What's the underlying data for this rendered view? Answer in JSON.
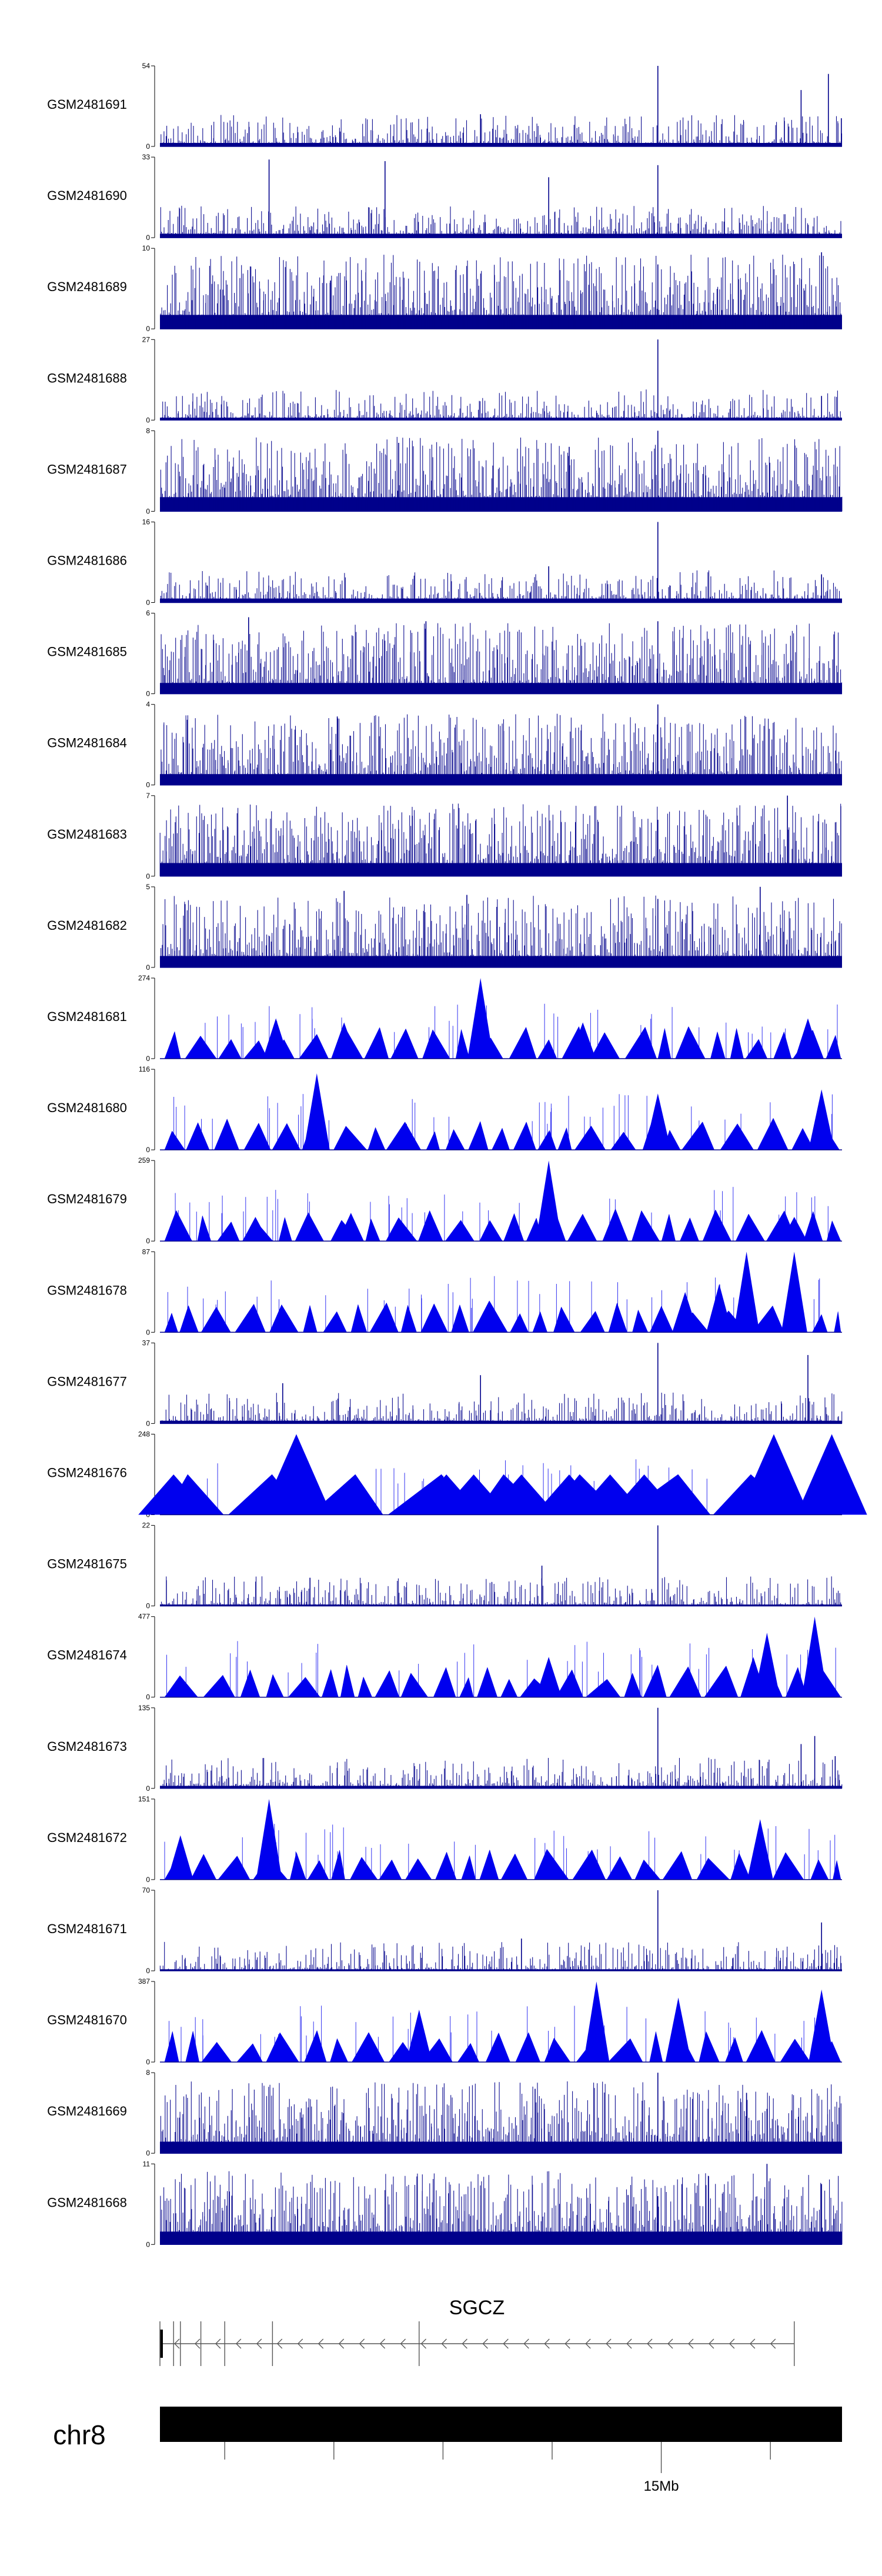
{
  "chart_data": {
    "type": "coverage-tracks",
    "title": "",
    "colors": {
      "signal": "#00008B",
      "signal_filled": "#0000EE",
      "axis": "#000000",
      "gene": "#555555",
      "ideogram": "#000000"
    },
    "tracks": [
      {
        "name": "GSM2481691",
        "ymax": 54,
        "ymin": 0,
        "style": "bars",
        "peaks": [
          [
            0.47,
            0.4
          ],
          [
            0.73,
            1.0
          ],
          [
            0.94,
            0.7
          ],
          [
            0.98,
            0.9
          ],
          [
            0.999,
            0.35
          ]
        ]
      },
      {
        "name": "GSM2481690",
        "ymax": 33,
        "ymin": 0,
        "style": "bars",
        "peaks": [
          [
            0.16,
            0.97
          ],
          [
            0.33,
            0.95
          ],
          [
            0.57,
            0.75
          ],
          [
            0.73,
            0.9
          ]
        ]
      },
      {
        "name": "GSM2481689",
        "ymax": 10,
        "ymin": 0,
        "style": "bars",
        "peaks": [
          [
            0.25,
            0.6
          ],
          [
            0.73,
            0.8
          ],
          [
            0.97,
            0.95
          ]
        ]
      },
      {
        "name": "GSM2481688",
        "ymax": 27,
        "ymin": 0,
        "style": "bars",
        "peaks": [
          [
            0.73,
            1.0
          ],
          [
            0.97,
            0.3
          ]
        ]
      },
      {
        "name": "GSM2481687",
        "ymax": 8,
        "ymin": 0,
        "style": "bars",
        "peaks": [
          [
            0.73,
            1.0
          ],
          [
            0.35,
            0.85
          ],
          [
            0.6,
            0.8
          ]
        ]
      },
      {
        "name": "GSM2481686",
        "ymax": 16,
        "ymin": 0,
        "style": "bars",
        "peaks": [
          [
            0.73,
            1.0
          ],
          [
            0.57,
            0.45
          ],
          [
            0.97,
            0.35
          ]
        ]
      },
      {
        "name": "GSM2481685",
        "ymax": 6,
        "ymin": 0,
        "style": "bars",
        "peaks": [
          [
            0.13,
            0.95
          ],
          [
            0.39,
            0.9
          ],
          [
            0.73,
            0.9
          ]
        ]
      },
      {
        "name": "GSM2481684",
        "ymax": 4,
        "ymin": 0,
        "style": "bars",
        "peaks": [
          [
            0.26,
            0.85
          ],
          [
            0.73,
            1.0
          ]
        ]
      },
      {
        "name": "GSM2481683",
        "ymax": 7,
        "ymin": 0,
        "style": "bars",
        "peaks": [
          [
            0.37,
            0.75
          ],
          [
            0.73,
            0.7
          ],
          [
            0.92,
            1.0
          ]
        ]
      },
      {
        "name": "GSM2481682",
        "ymax": 5,
        "ymin": 0,
        "style": "bars",
        "peaks": [
          [
            0.27,
            0.95
          ],
          [
            0.45,
            0.9
          ],
          [
            0.73,
            0.85
          ],
          [
            0.88,
            1.0
          ]
        ]
      },
      {
        "name": "GSM2481681",
        "ymax": 274,
        "ymin": 0,
        "style": "triangles",
        "peaks": [
          [
            0.17,
            0.5
          ],
          [
            0.27,
            0.45
          ],
          [
            0.47,
            1.0
          ],
          [
            0.62,
            0.45
          ],
          [
            0.95,
            0.5
          ]
        ]
      },
      {
        "name": "GSM2481680",
        "ymax": 116,
        "ymin": 0,
        "style": "triangles",
        "peaks": [
          [
            0.23,
            0.95
          ],
          [
            0.73,
            0.7
          ],
          [
            0.97,
            0.75
          ]
        ]
      },
      {
        "name": "GSM2481679",
        "ymax": 259,
        "ymin": 0,
        "style": "triangles",
        "peaks": [
          [
            0.14,
            0.3
          ],
          [
            0.28,
            0.35
          ],
          [
            0.57,
            1.0
          ],
          [
            0.93,
            0.3
          ]
        ]
      },
      {
        "name": "GSM2481678",
        "ymax": 87,
        "ymin": 0,
        "style": "triangles",
        "peaks": [
          [
            0.86,
            1.0
          ],
          [
            0.93,
            1.0
          ],
          [
            0.77,
            0.5
          ],
          [
            0.82,
            0.6
          ]
        ]
      },
      {
        "name": "GSM2481677",
        "ymax": 37,
        "ymin": 0,
        "style": "bars",
        "peaks": [
          [
            0.73,
            1.0
          ],
          [
            0.47,
            0.6
          ],
          [
            0.95,
            0.85
          ],
          [
            0.18,
            0.5
          ]
        ]
      },
      {
        "name": "GSM2481676",
        "ymax": 248,
        "ymin": 0,
        "style": "big-triangles",
        "peaks": [
          [
            0.02,
            0.5
          ],
          [
            0.2,
            1.0
          ],
          [
            0.42,
            0.5
          ],
          [
            0.46,
            0.5
          ],
          [
            0.53,
            0.5
          ],
          [
            0.6,
            0.5
          ],
          [
            0.66,
            0.5
          ],
          [
            0.71,
            0.5
          ],
          [
            0.9,
            1.0
          ],
          [
            0.985,
            1.0
          ]
        ]
      },
      {
        "name": "GSM2481675",
        "ymax": 22,
        "ymin": 0,
        "style": "bars",
        "peaks": [
          [
            0.73,
            1.0
          ],
          [
            0.22,
            0.35
          ],
          [
            0.56,
            0.5
          ]
        ]
      },
      {
        "name": "GSM2481674",
        "ymax": 477,
        "ymin": 0,
        "style": "triangles",
        "peaks": [
          [
            0.57,
            0.5
          ],
          [
            0.87,
            0.5
          ],
          [
            0.89,
            0.8
          ],
          [
            0.96,
            1.0
          ]
        ]
      },
      {
        "name": "GSM2481673",
        "ymax": 135,
        "ymin": 0,
        "style": "bars",
        "peaks": [
          [
            0.73,
            1.0
          ],
          [
            0.94,
            0.55
          ],
          [
            0.96,
            0.65
          ],
          [
            0.99,
            0.4
          ]
        ]
      },
      {
        "name": "GSM2481672",
        "ymax": 151,
        "ymin": 0,
        "style": "triangles",
        "peaks": [
          [
            0.16,
            1.0
          ],
          [
            0.88,
            0.75
          ],
          [
            0.03,
            0.55
          ]
        ]
      },
      {
        "name": "GSM2481671",
        "ymax": 70,
        "ymin": 0,
        "style": "bars",
        "peaks": [
          [
            0.73,
            1.0
          ],
          [
            0.97,
            0.6
          ],
          [
            0.53,
            0.4
          ]
        ]
      },
      {
        "name": "GSM2481670",
        "ymax": 387,
        "ymin": 0,
        "style": "triangles",
        "peaks": [
          [
            0.64,
            1.0
          ],
          [
            0.38,
            0.65
          ],
          [
            0.76,
            0.8
          ],
          [
            0.97,
            0.9
          ]
        ]
      },
      {
        "name": "GSM2481669",
        "ymax": 8,
        "ymin": 0,
        "style": "bars",
        "peaks": [
          [
            0.73,
            1.0
          ],
          [
            0.55,
            0.8
          ],
          [
            0.86,
            0.75
          ]
        ]
      },
      {
        "name": "GSM2481668",
        "ymax": 11,
        "ymin": 0,
        "style": "bars",
        "peaks": [
          [
            0.89,
            1.0
          ],
          [
            0.97,
            0.75
          ],
          [
            0.73,
            0.6
          ]
        ]
      }
    ],
    "gene": {
      "name": "SGCZ",
      "strand": "-",
      "exons": [
        0.0,
        0.02,
        0.03,
        0.06,
        0.095,
        0.165,
        0.38,
        0.93
      ]
    },
    "chromosome": {
      "name": "chr8",
      "tick_label": "15Mb",
      "ticks": [
        0.095,
        0.255,
        0.415,
        0.575,
        0.735,
        0.895
      ],
      "labeled_tick": 0.735
    }
  }
}
